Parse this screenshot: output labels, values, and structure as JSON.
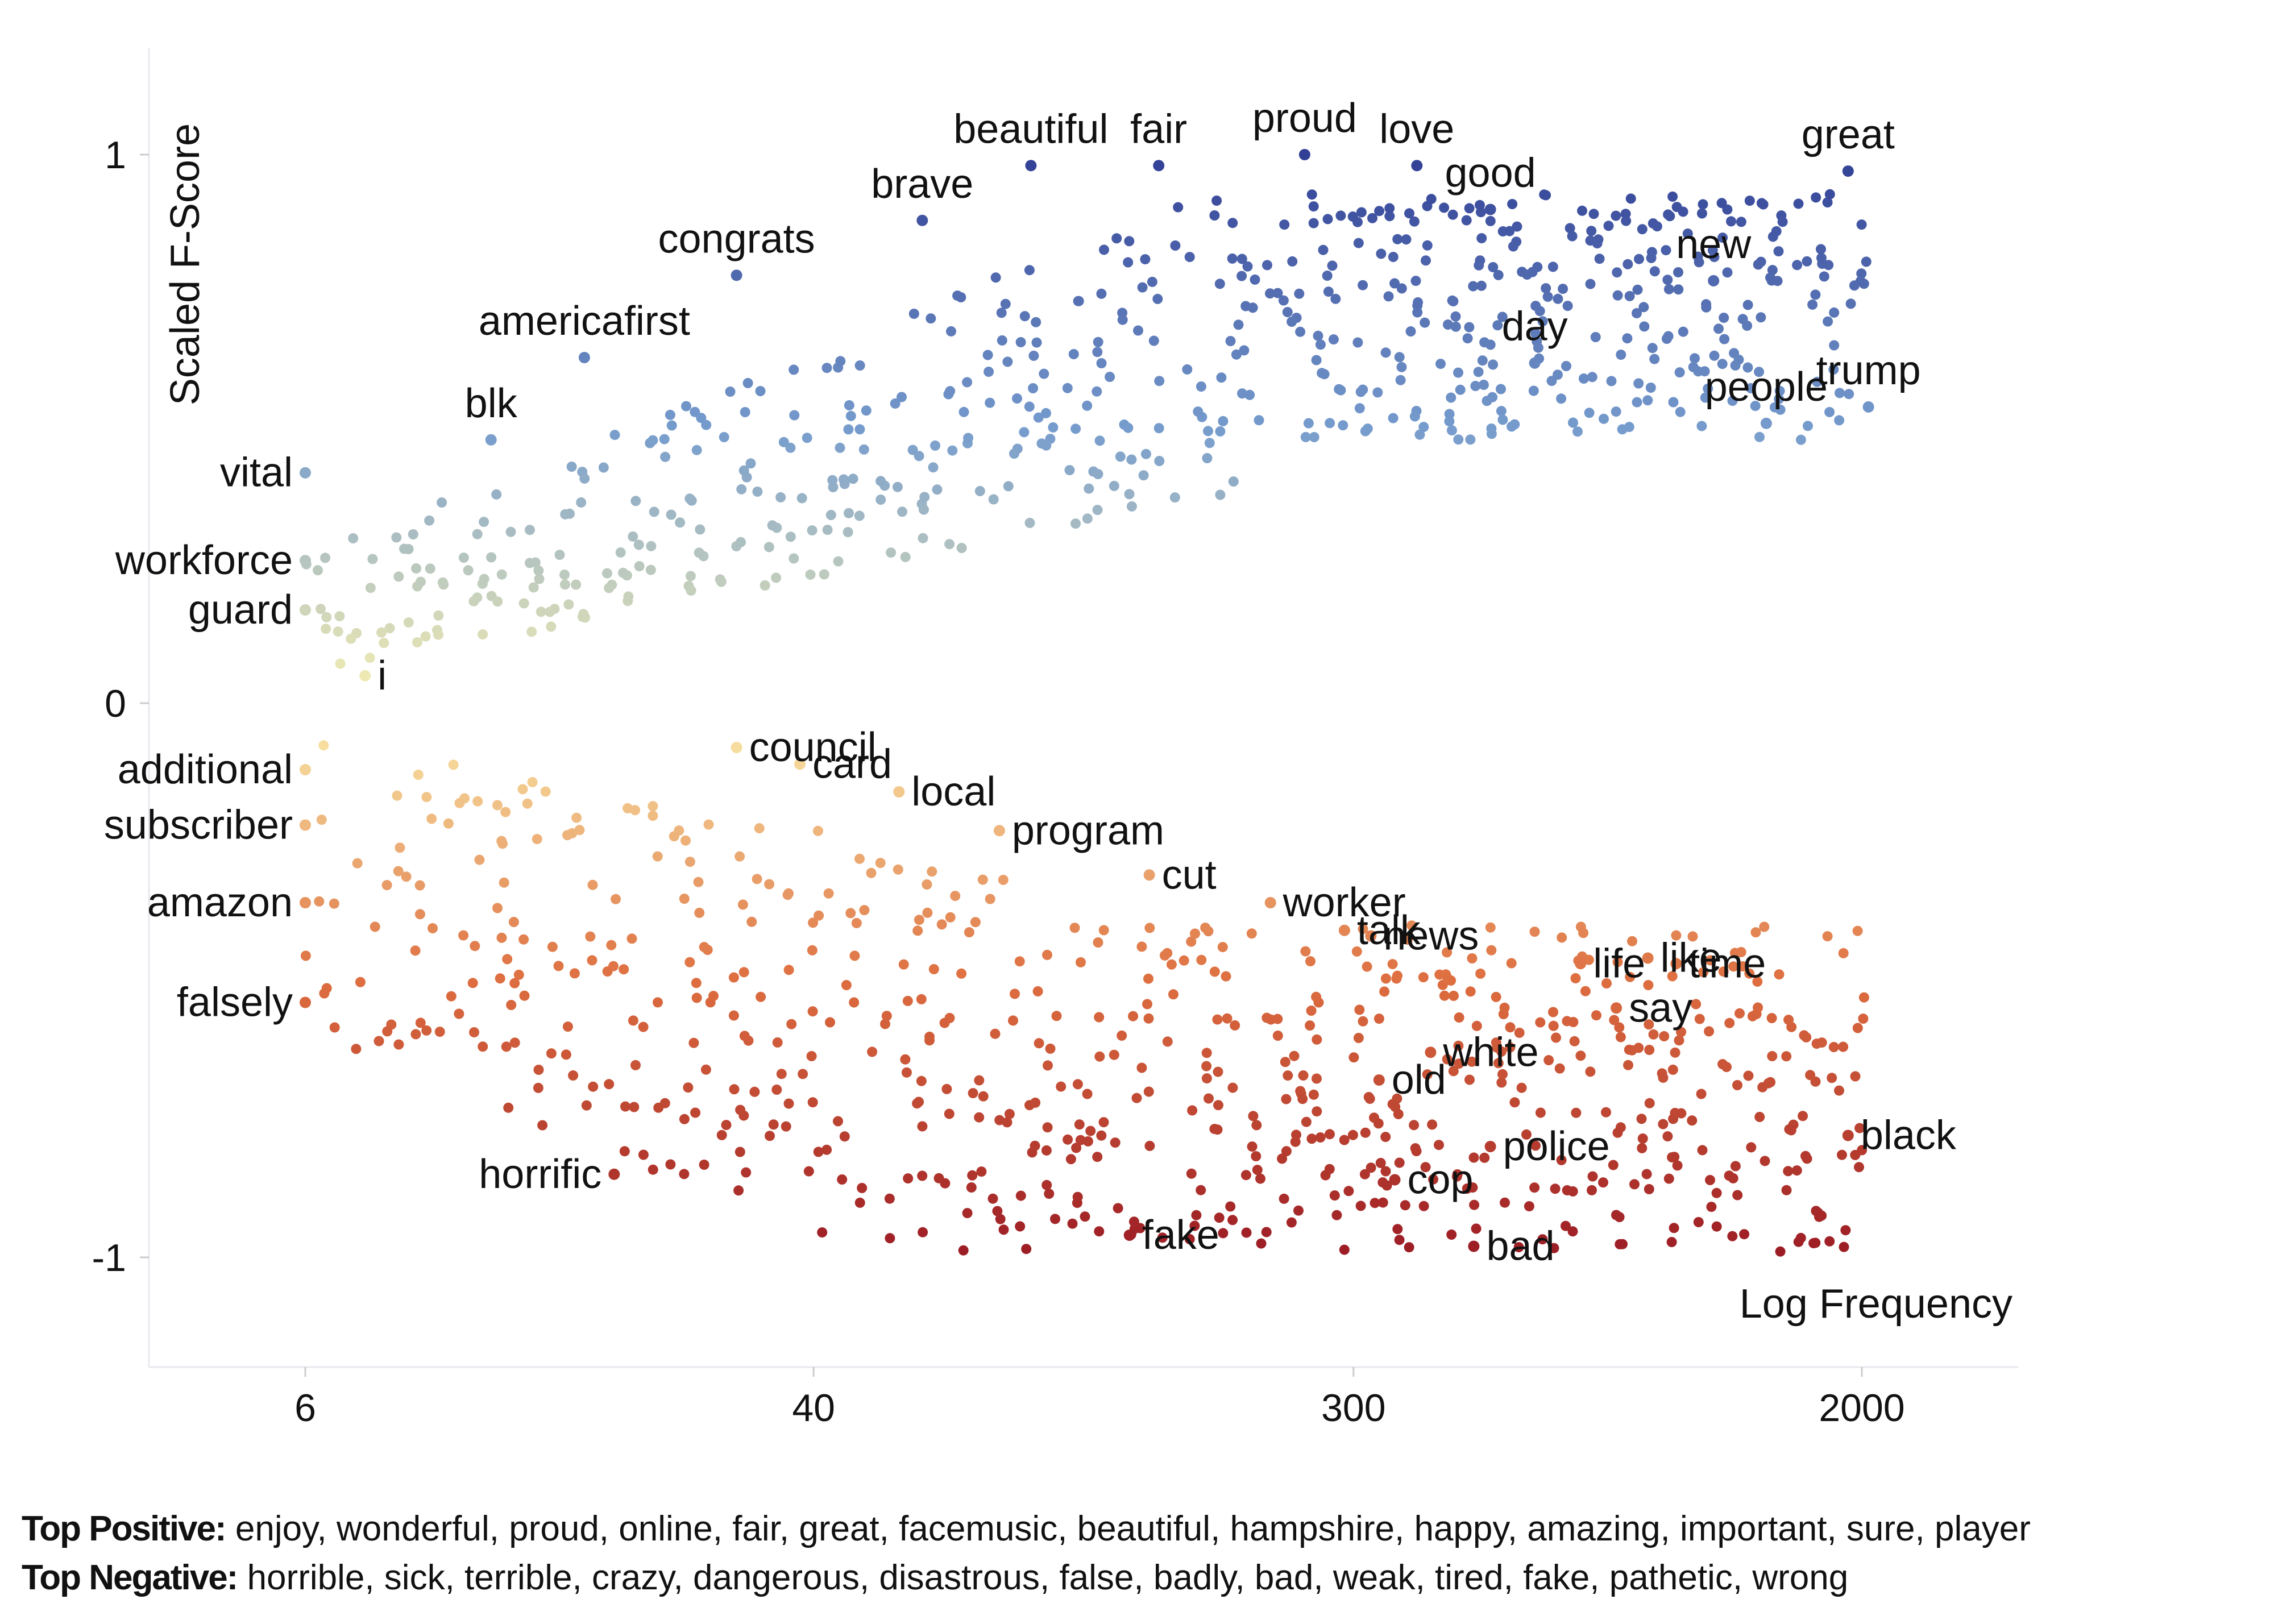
{
  "chart_data": {
    "type": "scatter",
    "title": "",
    "xlabel": "Log Frequency",
    "ylabel": "Scaled F-Score",
    "x_scale": "log",
    "x_ticks": [
      6,
      40,
      300,
      2000
    ],
    "y_ticks": [
      -1,
      0,
      1
    ],
    "y_tick_labels": [
      "-1",
      "0",
      "1"
    ],
    "x_tick_labels": [
      "6",
      "40",
      "300",
      "2000"
    ],
    "xlim": [
      3,
      3200
    ],
    "ylim": [
      -1.2,
      1.2
    ],
    "color_scale": {
      "negative": "#9b1b24",
      "neutral": "#fbf2b0",
      "positive": "#313f95"
    },
    "labeled_points": [
      {
        "term": "beautiful",
        "x": 90,
        "y": 0.98
      },
      {
        "term": "fair",
        "x": 145,
        "y": 0.98
      },
      {
        "term": "proud",
        "x": 250,
        "y": 1.0
      },
      {
        "term": "great",
        "x": 1900,
        "y": 0.97
      },
      {
        "term": "good",
        "x": 500,
        "y": 0.9
      },
      {
        "term": "love",
        "x": 380,
        "y": 0.98
      },
      {
        "term": "brave",
        "x": 60,
        "y": 0.88
      },
      {
        "term": "congrats",
        "x": 30,
        "y": 0.78
      },
      {
        "term": "new",
        "x": 1150,
        "y": 0.77
      },
      {
        "term": "americafirst",
        "x": 17,
        "y": 0.63
      },
      {
        "term": "day",
        "x": 590,
        "y": 0.62
      },
      {
        "term": "people",
        "x": 1400,
        "y": 0.51
      },
      {
        "term": "trump",
        "x": 2050,
        "y": 0.54
      },
      {
        "term": "blk",
        "x": 12,
        "y": 0.48
      },
      {
        "term": "vital",
        "x": 6,
        "y": 0.42
      },
      {
        "term": "workforce",
        "x": 6,
        "y": 0.26
      },
      {
        "term": "guard",
        "x": 6,
        "y": 0.17
      },
      {
        "term": "i",
        "x": 7.5,
        "y": 0.05
      },
      {
        "term": "additional",
        "x": 6,
        "y": -0.12
      },
      {
        "term": "subscriber",
        "x": 6,
        "y": -0.22
      },
      {
        "term": "amazon",
        "x": 6,
        "y": -0.36
      },
      {
        "term": "falsely",
        "x": 6,
        "y": -0.54
      },
      {
        "term": "council",
        "x": 30,
        "y": -0.08
      },
      {
        "term": "card",
        "x": 38,
        "y": -0.11
      },
      {
        "term": "local",
        "x": 55,
        "y": -0.16
      },
      {
        "term": "program",
        "x": 80,
        "y": -0.23
      },
      {
        "term": "cut",
        "x": 140,
        "y": -0.31
      },
      {
        "term": "worker",
        "x": 220,
        "y": -0.36
      },
      {
        "term": "talk",
        "x": 290,
        "y": -0.41
      },
      {
        "term": "news",
        "x": 320,
        "y": -0.42
      },
      {
        "term": "life",
        "x": 700,
        "y": -0.47
      },
      {
        "term": "like",
        "x": 900,
        "y": -0.46
      },
      {
        "term": "time",
        "x": 1000,
        "y": -0.47
      },
      {
        "term": "say",
        "x": 800,
        "y": -0.55
      },
      {
        "term": "white",
        "x": 400,
        "y": -0.63
      },
      {
        "term": "old",
        "x": 330,
        "y": -0.68
      },
      {
        "term": "black",
        "x": 1900,
        "y": -0.78
      },
      {
        "term": "police",
        "x": 500,
        "y": -0.8
      },
      {
        "term": "cop",
        "x": 350,
        "y": -0.86
      },
      {
        "term": "horrific",
        "x": 19,
        "y": -0.85
      },
      {
        "term": "fake",
        "x": 130,
        "y": -0.96
      },
      {
        "term": "bad",
        "x": 470,
        "y": -0.98
      }
    ]
  },
  "footer": {
    "positive_key": "Top Positive:",
    "positive_terms": "enjoy, wonderful, proud, online, fair, great, facemusic, beautiful, hampshire, happy, amazing, important, sure, player",
    "negative_key": "Top Negative:",
    "negative_terms": "horrible, sick, terrible, crazy, dangerous, disastrous, false, badly, bad, weak, tired, fake, pathetic, wrong"
  }
}
